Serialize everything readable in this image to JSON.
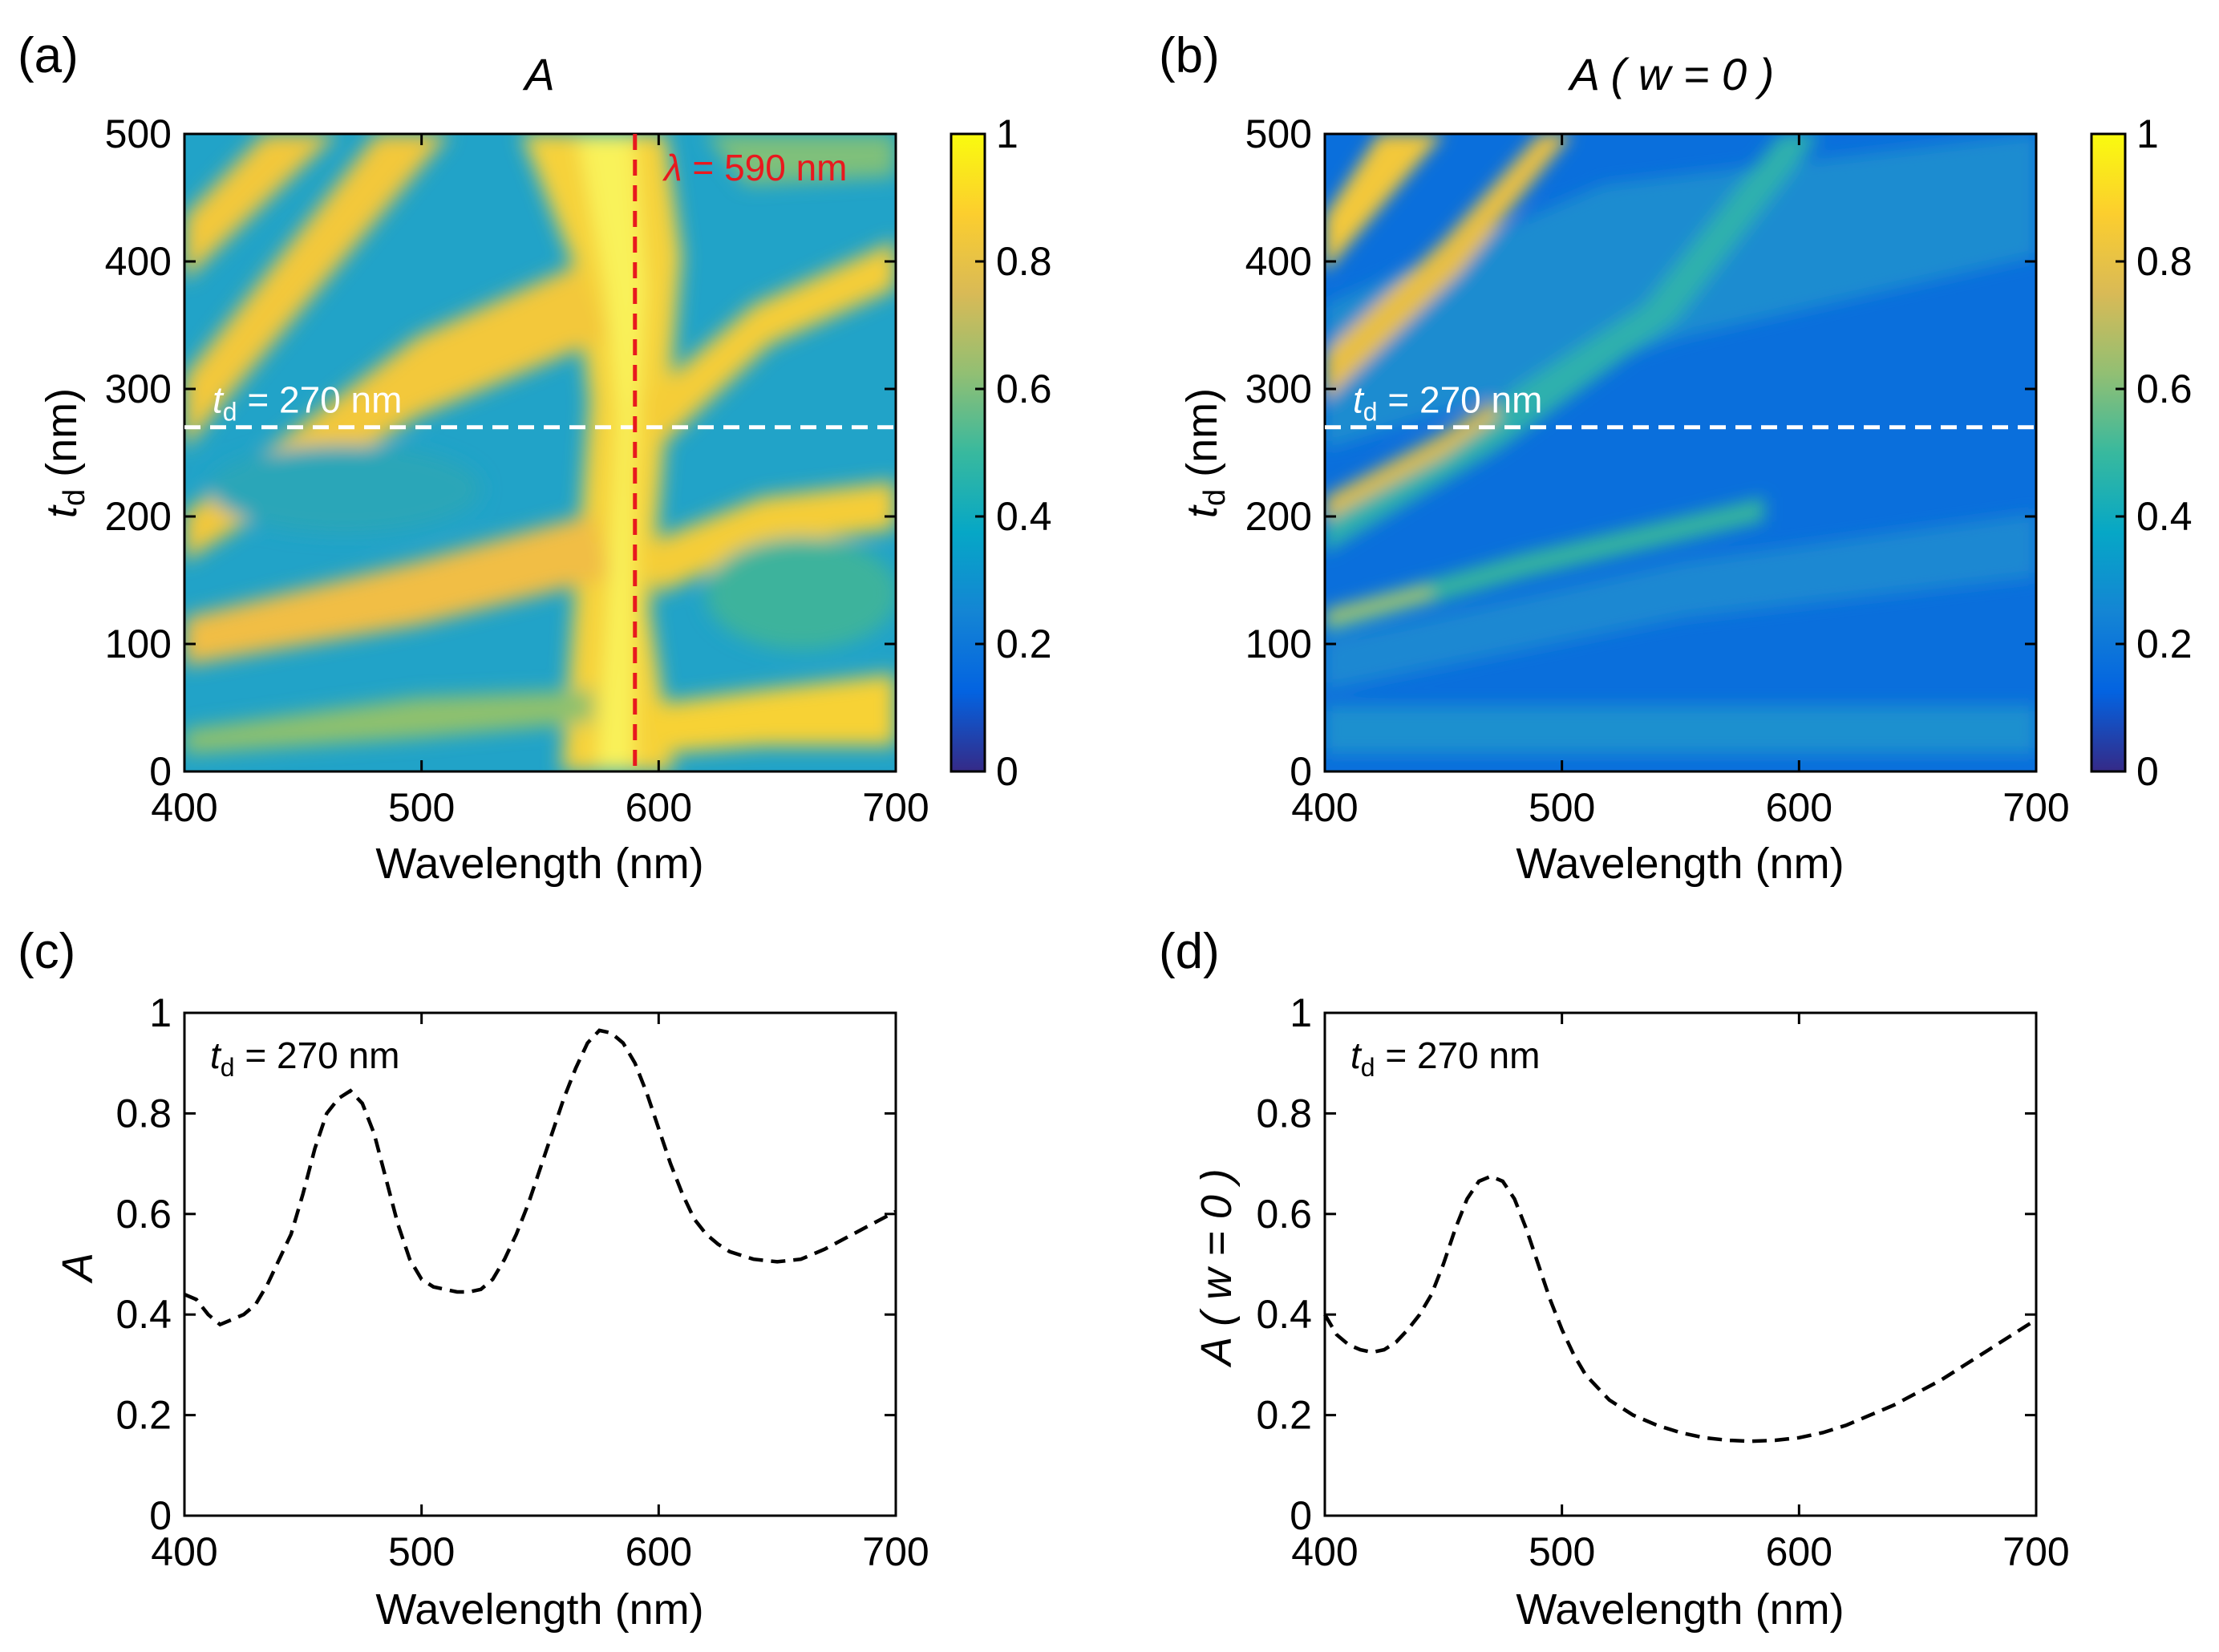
{
  "colors": {
    "white_dash": "#ffffff",
    "red_dash": "#e8191e",
    "red_label": "#e8191e",
    "curve": "#000000",
    "parula": [
      "#352a87",
      "#0363e1",
      "#1485d4",
      "#06a7c6",
      "#38b99e",
      "#92bf73",
      "#d9ba56",
      "#fcce2e",
      "#f9fb0e"
    ]
  },
  "chart_data": [
    {
      "id": "a",
      "type": "heatmap",
      "panel_label": "(a)",
      "title": "A",
      "xlabel": "Wavelength (nm)",
      "ylabel_main": "t",
      "ylabel_sub": "d",
      "ylabel_unit": " (nm)",
      "xlim": [
        400,
        700
      ],
      "ylim": [
        0,
        500
      ],
      "xticks": [
        "400",
        "500",
        "600",
        "700"
      ],
      "yticks": [
        "0",
        "100",
        "200",
        "300",
        "400",
        "500"
      ],
      "colorbar": {
        "range": [
          0,
          1
        ],
        "ticks": [
          "0",
          "0.2",
          "0.4",
          "0.6",
          "0.8",
          "1"
        ]
      },
      "hline": {
        "value": 270,
        "label_main": "t",
        "label_sub": "d",
        "label_rest": " = 270 nm"
      },
      "vline": {
        "value": 590,
        "label_main": "λ",
        "label_rest": " = 590 nm"
      },
      "peaks_nm": [
        470,
        590
      ]
    },
    {
      "id": "b",
      "type": "heatmap",
      "panel_label": "(b)",
      "title": "A ( w = 0 )",
      "xlabel": "Wavelength (nm)",
      "ylabel_main": "t",
      "ylabel_sub": "d",
      "ylabel_unit": " (nm)",
      "xlim": [
        400,
        700
      ],
      "ylim": [
        0,
        500
      ],
      "xticks": [
        "400",
        "500",
        "600",
        "700"
      ],
      "yticks": [
        "0",
        "100",
        "200",
        "300",
        "400",
        "500"
      ],
      "colorbar": {
        "range": [
          0,
          1
        ],
        "ticks": [
          "0",
          "0.2",
          "0.4",
          "0.6",
          "0.8",
          "1"
        ]
      },
      "hline": {
        "value": 270,
        "label_main": "t",
        "label_sub": "d",
        "label_rest": " = 270 nm"
      }
    },
    {
      "id": "c",
      "type": "line",
      "panel_label": "(c)",
      "ylabel": "A",
      "xlabel": "Wavelength (nm)",
      "xlim": [
        400,
        700
      ],
      "ylim": [
        0,
        1
      ],
      "xticks": [
        "400",
        "500",
        "600",
        "700"
      ],
      "yticks": [
        "0",
        "0.2",
        "0.4",
        "0.6",
        "0.8",
        "1"
      ],
      "annotation_main": "t",
      "annotation_sub": "d",
      "annotation_rest": " = 270 nm",
      "series": [
        {
          "name": "A",
          "style": "dashed",
          "x": [
            400,
            405,
            410,
            415,
            420,
            425,
            430,
            435,
            440,
            445,
            450,
            455,
            460,
            465,
            470,
            475,
            480,
            485,
            490,
            495,
            500,
            505,
            510,
            515,
            520,
            525,
            530,
            535,
            540,
            545,
            550,
            555,
            560,
            565,
            570,
            575,
            580,
            585,
            590,
            595,
            600,
            605,
            610,
            615,
            620,
            625,
            630,
            640,
            650,
            660,
            670,
            680,
            690,
            700
          ],
          "y": [
            0.44,
            0.43,
            0.4,
            0.38,
            0.39,
            0.4,
            0.42,
            0.46,
            0.51,
            0.56,
            0.64,
            0.73,
            0.8,
            0.83,
            0.845,
            0.82,
            0.76,
            0.67,
            0.58,
            0.51,
            0.47,
            0.455,
            0.45,
            0.445,
            0.445,
            0.45,
            0.47,
            0.51,
            0.56,
            0.62,
            0.69,
            0.76,
            0.83,
            0.89,
            0.94,
            0.965,
            0.96,
            0.94,
            0.9,
            0.84,
            0.77,
            0.7,
            0.64,
            0.59,
            0.56,
            0.54,
            0.525,
            0.51,
            0.505,
            0.51,
            0.53,
            0.555,
            0.58,
            0.605
          ]
        }
      ]
    },
    {
      "id": "d",
      "type": "line",
      "panel_label": "(d)",
      "ylabel": "A ( w = 0 )",
      "xlabel": "Wavelength (nm)",
      "xlim": [
        400,
        700
      ],
      "ylim": [
        0,
        1
      ],
      "xticks": [
        "400",
        "500",
        "600",
        "700"
      ],
      "yticks": [
        "0",
        "0.2",
        "0.4",
        "0.6",
        "0.8",
        "1"
      ],
      "annotation_main": "t",
      "annotation_sub": "d",
      "annotation_rest": " = 270 nm",
      "series": [
        {
          "name": "A ( w = 0 )",
          "style": "dashed",
          "x": [
            400,
            405,
            410,
            415,
            420,
            425,
            430,
            435,
            440,
            445,
            450,
            455,
            460,
            465,
            470,
            475,
            480,
            485,
            490,
            495,
            500,
            505,
            510,
            520,
            530,
            540,
            550,
            560,
            570,
            580,
            590,
            600,
            610,
            620,
            630,
            640,
            650,
            660,
            670,
            680,
            690,
            700
          ],
          "y": [
            0.4,
            0.36,
            0.34,
            0.33,
            0.325,
            0.33,
            0.345,
            0.37,
            0.4,
            0.44,
            0.5,
            0.57,
            0.63,
            0.665,
            0.675,
            0.665,
            0.63,
            0.57,
            0.5,
            0.43,
            0.37,
            0.32,
            0.28,
            0.23,
            0.2,
            0.18,
            0.165,
            0.155,
            0.15,
            0.148,
            0.15,
            0.155,
            0.165,
            0.18,
            0.2,
            0.22,
            0.245,
            0.27,
            0.3,
            0.33,
            0.36,
            0.39
          ]
        }
      ]
    }
  ]
}
